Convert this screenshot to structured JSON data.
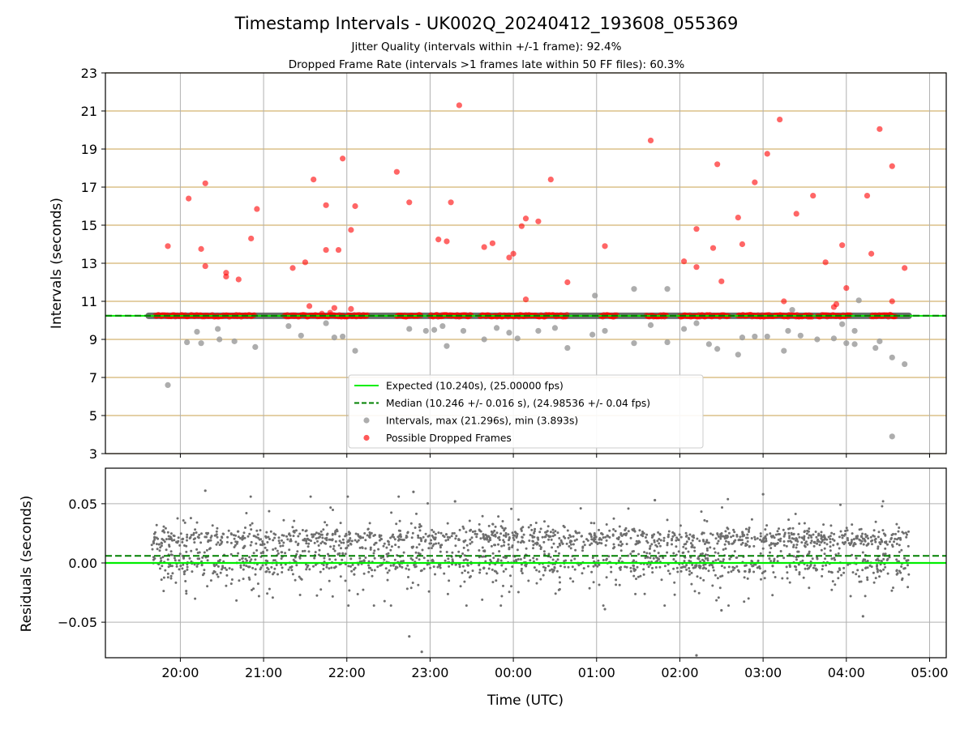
{
  "chart_data": [
    {
      "type": "scatter",
      "title": "Timestamp Intervals - UK002Q_20240412_193608_055369",
      "subtitle_1": "Jitter Quality (intervals within +/-1 frame): 92.4%",
      "subtitle_2": "Dropped Frame Rate (intervals >1 frames late within 50 FF files): 60.3%",
      "ylabel": "Intervals (seconds)",
      "ylim": [
        3,
        23
      ],
      "yticks": [
        "3",
        "5",
        "7",
        "9",
        "11",
        "13",
        "15",
        "17",
        "19",
        "21",
        "23"
      ],
      "xlim_hours": [
        19.1,
        29.2
      ],
      "grid": true,
      "legend_position": "lower-center",
      "expected": 10.24,
      "median": 10.246,
      "legend": {
        "expected": "Expected (10.240s), (25.00000 fps)",
        "median": "Median (10.246 +/- 0.016 s), (24.98536 +/- 0.04 fps)",
        "intervals": "Intervals, max (21.296s), min (3.893s)",
        "dropped": "Possible Dropped Frames"
      },
      "colors": {
        "expected": "#00ee00",
        "median": "#008000",
        "intervals": "#999999",
        "dropped": "#ff0000",
        "band": "#555555",
        "ygrid": "#d4b572",
        "xgrid": "#b0b0b0"
      },
      "band": {
        "x_start": 19.62,
        "x_end": 28.75,
        "y": 10.24
      },
      "dropped_cluster_segments": [
        [
          19.7,
          20.9
        ],
        [
          21.25,
          22.25
        ],
        [
          22.6,
          22.9
        ],
        [
          23.0,
          23.5
        ],
        [
          23.6,
          24.65
        ],
        [
          25.05,
          25.25
        ],
        [
          25.6,
          25.85
        ],
        [
          26.0,
          26.6
        ],
        [
          26.7,
          27.6
        ],
        [
          27.65,
          28.05
        ],
        [
          28.3,
          28.6
        ]
      ],
      "intervals_scatter": [
        [
          19.85,
          6.6
        ],
        [
          20.08,
          8.85
        ],
        [
          20.2,
          9.4
        ],
        [
          20.25,
          8.8
        ],
        [
          20.45,
          9.55
        ],
        [
          20.47,
          9.0
        ],
        [
          20.65,
          8.9
        ],
        [
          20.9,
          8.6
        ],
        [
          21.3,
          9.7
        ],
        [
          21.45,
          9.2
        ],
        [
          21.75,
          9.85
        ],
        [
          21.85,
          9.1
        ],
        [
          21.95,
          9.15
        ],
        [
          22.1,
          8.4
        ],
        [
          22.75,
          9.55
        ],
        [
          22.95,
          9.45
        ],
        [
          23.05,
          9.5
        ],
        [
          23.15,
          9.7
        ],
        [
          23.2,
          8.65
        ],
        [
          23.4,
          9.45
        ],
        [
          23.65,
          9.0
        ],
        [
          23.8,
          9.6
        ],
        [
          23.95,
          9.35
        ],
        [
          24.05,
          9.05
        ],
        [
          24.3,
          9.45
        ],
        [
          24.5,
          9.6
        ],
        [
          24.65,
          8.55
        ],
        [
          24.95,
          9.25
        ],
        [
          24.98,
          11.3
        ],
        [
          25.1,
          9.45
        ],
        [
          25.45,
          8.8
        ],
        [
          25.45,
          11.65
        ],
        [
          25.65,
          9.75
        ],
        [
          25.85,
          8.85
        ],
        [
          25.85,
          11.65
        ],
        [
          26.05,
          9.55
        ],
        [
          26.2,
          9.85
        ],
        [
          26.35,
          8.75
        ],
        [
          26.45,
          8.5
        ],
        [
          26.7,
          8.2
        ],
        [
          26.75,
          9.1
        ],
        [
          26.9,
          9.15
        ],
        [
          27.05,
          9.15
        ],
        [
          27.25,
          8.4
        ],
        [
          27.3,
          9.45
        ],
        [
          27.35,
          10.55
        ],
        [
          27.45,
          9.2
        ],
        [
          27.65,
          9.0
        ],
        [
          27.85,
          9.05
        ],
        [
          27.95,
          9.8
        ],
        [
          28.0,
          8.8
        ],
        [
          28.1,
          8.75
        ],
        [
          28.1,
          9.45
        ],
        [
          28.15,
          11.05
        ],
        [
          28.35,
          8.55
        ],
        [
          28.4,
          8.9
        ],
        [
          28.55,
          8.05
        ],
        [
          28.7,
          7.7
        ],
        [
          28.55,
          3.9
        ]
      ],
      "dropped_scatter": [
        [
          19.85,
          13.9
        ],
        [
          20.1,
          16.4
        ],
        [
          20.25,
          13.75
        ],
        [
          20.3,
          12.85
        ],
        [
          20.3,
          17.2
        ],
        [
          20.55,
          12.5
        ],
        [
          20.55,
          12.3
        ],
        [
          20.7,
          12.15
        ],
        [
          20.85,
          14.3
        ],
        [
          20.92,
          15.85
        ],
        [
          21.35,
          12.75
        ],
        [
          21.5,
          13.05
        ],
        [
          21.55,
          10.75
        ],
        [
          21.6,
          17.4
        ],
        [
          21.7,
          10.35
        ],
        [
          21.75,
          16.05
        ],
        [
          21.75,
          13.7
        ],
        [
          21.8,
          10.4
        ],
        [
          21.85,
          10.65
        ],
        [
          21.9,
          13.7
        ],
        [
          21.95,
          18.5
        ],
        [
          22.05,
          10.6
        ],
        [
          22.05,
          14.75
        ],
        [
          22.1,
          16.0
        ],
        [
          22.6,
          17.8
        ],
        [
          22.75,
          16.2
        ],
        [
          23.1,
          14.25
        ],
        [
          23.2,
          14.15
        ],
        [
          23.25,
          16.2
        ],
        [
          23.35,
          21.3
        ],
        [
          23.65,
          13.85
        ],
        [
          23.75,
          14.05
        ],
        [
          23.95,
          13.3
        ],
        [
          24.0,
          13.5
        ],
        [
          24.1,
          14.95
        ],
        [
          24.15,
          15.35
        ],
        [
          24.15,
          11.1
        ],
        [
          24.3,
          15.2
        ],
        [
          24.45,
          17.4
        ],
        [
          24.65,
          12.0
        ],
        [
          25.1,
          13.9
        ],
        [
          25.65,
          19.45
        ],
        [
          26.05,
          13.1
        ],
        [
          26.2,
          14.8
        ],
        [
          26.2,
          12.8
        ],
        [
          26.4,
          13.8
        ],
        [
          26.45,
          18.2
        ],
        [
          26.5,
          12.05
        ],
        [
          26.7,
          15.4
        ],
        [
          26.75,
          14.0
        ],
        [
          26.9,
          17.25
        ],
        [
          27.05,
          18.75
        ],
        [
          27.2,
          20.55
        ],
        [
          27.25,
          11.0
        ],
        [
          27.4,
          15.6
        ],
        [
          27.6,
          16.55
        ],
        [
          27.75,
          13.05
        ],
        [
          27.85,
          10.7
        ],
        [
          27.88,
          10.85
        ],
        [
          27.95,
          13.95
        ],
        [
          28.0,
          11.7
        ],
        [
          28.25,
          16.55
        ],
        [
          28.3,
          13.5
        ],
        [
          28.4,
          20.05
        ],
        [
          28.55,
          18.1
        ],
        [
          28.55,
          11.0
        ],
        [
          28.7,
          12.75
        ]
      ]
    },
    {
      "type": "scatter",
      "title": "",
      "xlabel": "Time (UTC)",
      "ylabel": "Residuals (seconds)",
      "ylim": [
        -0.08,
        0.08
      ],
      "yticks": [
        "−0.05",
        "0.00",
        "0.05"
      ],
      "xlim_hours": [
        19.1,
        29.2
      ],
      "xticks": [
        "20:00",
        "21:00",
        "22:00",
        "23:00",
        "00:00",
        "01:00",
        "02:00",
        "03:00",
        "04:00",
        "05:00"
      ],
      "grid": true,
      "expected_residual": 0.0,
      "median_residual": 0.006,
      "residual_x_range": [
        19.65,
        28.75
      ],
      "outliers": [
        [
          20.3,
          0.061
        ],
        [
          22.8,
          0.06
        ],
        [
          22.75,
          -0.062
        ],
        [
          22.9,
          -0.075
        ],
        [
          26.2,
          -0.078
        ],
        [
          27.0,
          0.058
        ],
        [
          25.1,
          -0.039
        ],
        [
          26.5,
          -0.04
        ],
        [
          28.2,
          -0.045
        ],
        [
          23.3,
          0.052
        ],
        [
          25.7,
          0.053
        ]
      ]
    }
  ]
}
